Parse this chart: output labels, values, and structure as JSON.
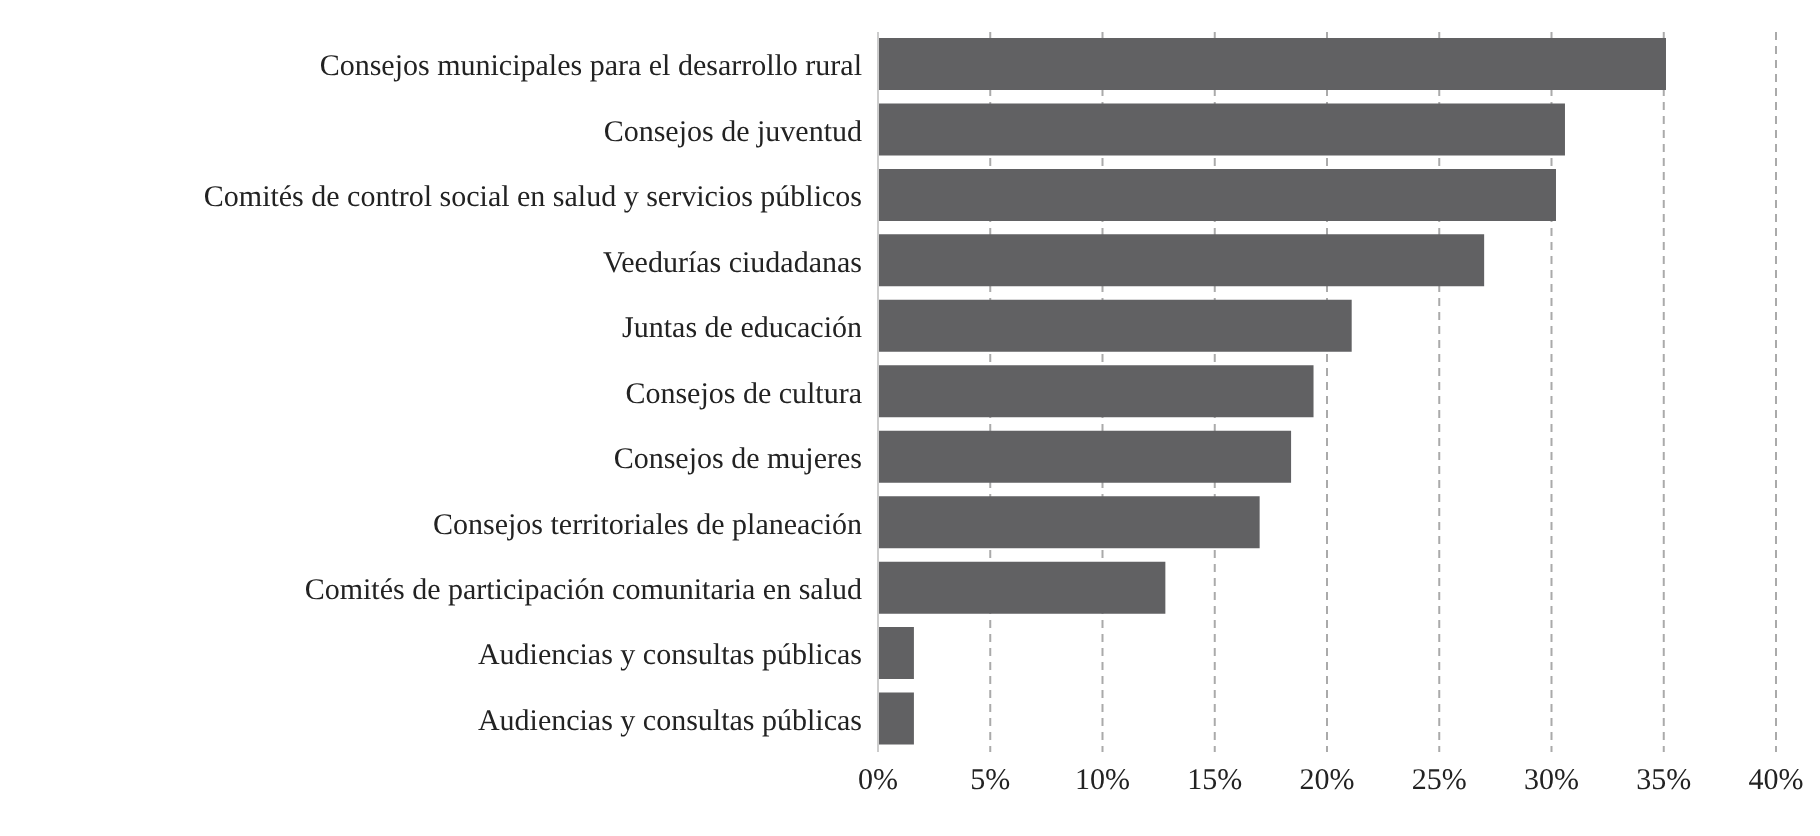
{
  "chart_data": {
    "type": "bar",
    "orientation": "horizontal",
    "categories": [
      "Consejos municipales para el desarrollo rural",
      "Consejos de juventud",
      "Comités de control social en salud y servicios públicos",
      "Veedurías ciudadanas",
      "Juntas de educación",
      "Consejos de cultura",
      "Consejos de mujeres",
      "Consejos territoriales de planeación",
      "Comités de participación comunitaria en salud",
      "Audiencias y consultas públicas",
      "Audiencias y consultas públicas"
    ],
    "values": [
      35.1,
      30.6,
      30.2,
      27.0,
      21.1,
      19.4,
      18.4,
      17.0,
      12.8,
      1.6,
      1.6
    ],
    "color": "#616163",
    "xlim": [
      0,
      40
    ],
    "xticks": [
      {
        "value": 0,
        "label": "0%"
      },
      {
        "value": 5,
        "label": "5%"
      },
      {
        "value": 10,
        "label": "10%"
      },
      {
        "value": 15,
        "label": "15%"
      },
      {
        "value": 20,
        "label": "20%"
      },
      {
        "value": 25,
        "label": "25%"
      },
      {
        "value": 30,
        "label": "30%"
      },
      {
        "value": 35,
        "label": "35%"
      },
      {
        "value": 40,
        "label": "40%"
      }
    ],
    "grid": "x"
  }
}
